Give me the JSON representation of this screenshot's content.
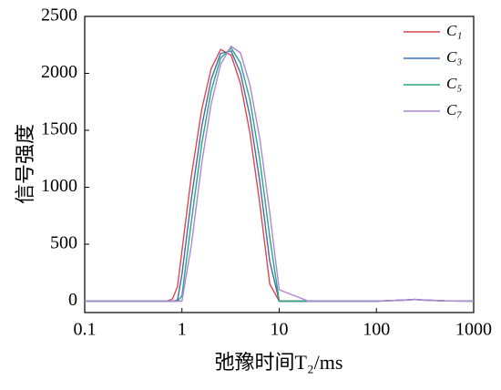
{
  "chart_data": {
    "type": "line",
    "x_label": "弛豫时间T₂/ms",
    "y_label": "信号强度",
    "xscale": "log",
    "x": [
      0.1,
      0.7,
      0.8,
      0.9,
      1,
      1.25,
      1.6,
      2,
      2.5,
      3.2,
      4,
      5,
      6.3,
      8,
      10,
      20,
      100,
      200,
      250,
      300,
      500,
      1000
    ],
    "series": [
      {
        "name": "C₁",
        "color": "#e0474c",
        "values": [
          0,
          0,
          20,
          128,
          442,
          1100,
          1687,
          2043,
          2210,
          2160,
          1910,
          1475,
          864,
          150,
          0,
          0,
          0,
          10,
          15,
          10,
          3,
          0
        ]
      },
      {
        "name": "C₃",
        "color": "#3a6fb5",
        "values": [
          0,
          0,
          0,
          10,
          235,
          900,
          1537,
          1950,
          2175,
          2197,
          2002,
          1623,
          1056,
          350,
          0,
          0,
          0,
          10,
          15,
          10,
          3,
          0
        ]
      },
      {
        "name": "C₅",
        "color": "#2ca57a",
        "values": [
          0,
          0,
          0,
          0,
          47,
          700,
          1384,
          1849,
          2134,
          2223,
          2091,
          1767,
          1248,
          563,
          0,
          0,
          0,
          10,
          15,
          10,
          3,
          0
        ]
      },
      {
        "name": "C₇",
        "color": "#b184d6",
        "values": [
          0,
          0,
          0,
          0,
          0,
          493,
          1214,
          1734,
          2079,
          2238,
          2180,
          1900,
          1434,
          775,
          100,
          0,
          0,
          10,
          15,
          10,
          3,
          0
        ]
      }
    ],
    "xlim": [
      0.1,
      1000
    ],
    "xticks": [
      0.1,
      1,
      10,
      100,
      1000
    ],
    "ylim": [
      -100,
      2500
    ],
    "yticks": [
      0,
      500,
      1000,
      1500,
      2000,
      2500
    ],
    "grid": false,
    "legend": "top-right"
  }
}
